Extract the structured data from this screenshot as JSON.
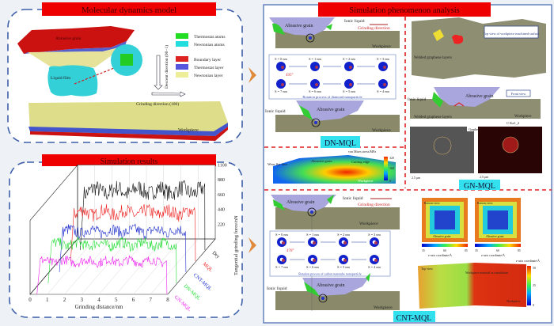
{
  "panels": {
    "model": {
      "title": "Molecular dynamics model",
      "abrasive_grain": "Abrasive grain",
      "liquid_film": "Liquid film",
      "descent_direction": "Descent direction (00−1)",
      "grinding_direction": "Grinding direction (100)",
      "workpiece": "Workpiece",
      "legend": [
        {
          "label": "Thermostat atoms",
          "color": "#22dd22"
        },
        {
          "label": "Newtonian atoms",
          "color": "#22dddd"
        },
        {
          "label": "Boundary layer",
          "color": "#dd2222"
        },
        {
          "label": "Thermostat layer",
          "color": "#5555dd"
        },
        {
          "label": "Newtonian layer",
          "color": "#eeee99"
        }
      ]
    },
    "results": {
      "title": "Simulation results"
    },
    "analysis": {
      "title": "Simulation phenomenon analysis",
      "dn": {
        "label": "DN-MQL",
        "abrasive_grain": "Abrasive grain",
        "ionic_liquid": "Ionic liquid",
        "grinding_direction": "Grinding direction",
        "workpiece": "Workpiece",
        "steps_top": [
          "S = 0 nm",
          "S = 1 nm",
          "S = 2 nm",
          "S = 3 nm"
        ],
        "steps_bottom": [
          "S = 7 nm",
          "S = 6 nm",
          "S = 5 nm",
          "S = 4 nm"
        ],
        "angle": "495°",
        "rotation_caption": "Rotation process of diamond nanoparticle",
        "stress": {
          "title": "von Mises stress/MPa",
          "ticks": [
            "320",
            "160",
            "0"
          ],
          "wear_flat_face": "Wear flat face",
          "cutting_edge": "Cutting edge",
          "abrasive_grain": "Abrasive grain",
          "workpiece": "Workpiece"
        }
      },
      "gn": {
        "label": "GN-MQL",
        "top_view": "Top view of workpiece machined surface",
        "welded": "Welded graphene layers",
        "front_view": "Front view",
        "ionic_liquid": "Ionic liquid",
        "abrasive_grain": "Abrasive grain",
        "welded_front": "Welded graphene layers",
        "workpiece": "Workpiece",
        "eds_label": "C Ka1_2",
        "graphene": "Graphene",
        "scale": "2.5 μm"
      },
      "cnt": {
        "label": "CNT-MQL",
        "abrasive_grain": "Abrasive grain",
        "ionic_liquid": "Ionic liquid",
        "grinding_direction": "Grinding direction",
        "workpiece": "Workpiece",
        "steps_top": [
          "S = 0 nm",
          "S = 1 nm",
          "S = 2 nm",
          "S = 3 nm"
        ],
        "steps_bottom": [
          "S = 7 nm",
          "S = 6 nm",
          "S = 5 nm",
          "S = 4 nm"
        ],
        "angle": "478°",
        "rotation_caption": "Rotation process of carbon nanotube nanoparticle",
        "bottom_view": "Bottom view",
        "colorbar_ticks": [
          "35",
          "60",
          "85"
        ],
        "z_axis": "z-axis coordinate/Å",
        "top_view": "Top view",
        "accumulation": "Workpiece material accumulation",
        "heat_ticks": [
          "50",
          "25",
          "0"
        ]
      }
    }
  },
  "chart_data": {
    "type": "line",
    "style": "3d-waterfall",
    "xlabel": "Grinding distance/nm",
    "ylabel": "Tangential grinding force/nN",
    "x_ticks": [
      "0",
      "1",
      "2",
      "3",
      "4",
      "5",
      "6",
      "7",
      "8"
    ],
    "y_ticks": [
      "1100",
      "880",
      "660",
      "440",
      "220"
    ],
    "xlim": [
      0,
      8
    ],
    "ylim": [
      0,
      1100
    ],
    "series": [
      {
        "name": "Dry",
        "color": "#111111",
        "approx_plateau": 880
      },
      {
        "name": "MQL",
        "color": "#ee2222",
        "approx_plateau": 720
      },
      {
        "name": "CNT-MQL",
        "color": "#2233cc",
        "approx_plateau": 610
      },
      {
        "name": "DN-MQL",
        "color": "#22dd33",
        "approx_plateau": 580
      },
      {
        "name": "GN-MQL",
        "color": "#ee22ee",
        "approx_plateau": 490
      }
    ]
  }
}
